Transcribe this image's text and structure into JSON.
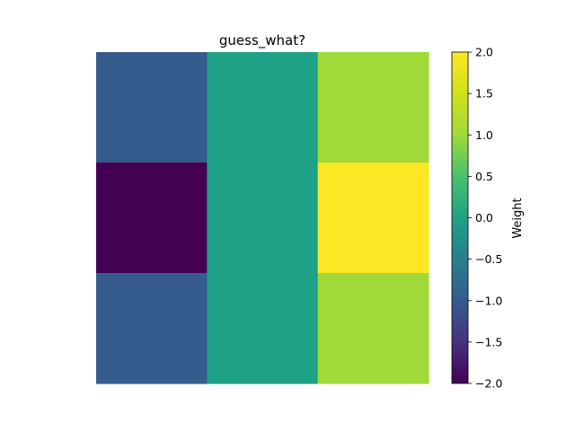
{
  "chart_data": {
    "type": "heatmap",
    "title": "guess_what?",
    "rows": 3,
    "cols": 3,
    "values": [
      [
        -1,
        0,
        1
      ],
      [
        -2,
        0,
        2
      ],
      [
        -1,
        0,
        1
      ]
    ],
    "colormap": "viridis",
    "colorbar": {
      "label": "Weight",
      "range": [
        -2.0,
        2.0
      ],
      "ticks": [
        2.0,
        1.5,
        1.0,
        0.5,
        0.0,
        -0.5,
        -1.0,
        -1.5,
        -2.0
      ],
      "tick_labels": [
        "2.0",
        "1.5",
        "1.0",
        "0.5",
        "0.0",
        "−0.5",
        "−1.0",
        "−1.5",
        "−2.0"
      ]
    },
    "axes_visible": false
  }
}
